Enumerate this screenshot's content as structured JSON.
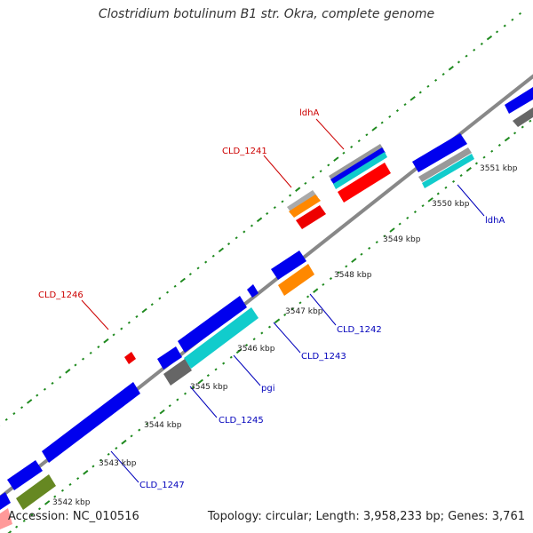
{
  "title": "Clostridium botulinum B1 str. Okra, complete genome",
  "footer": {
    "accession": "Accession: NC_010516",
    "topology": "Topology: circular; Length: 3,958,233 bp; Genes: 3,761"
  },
  "kbp_labels": [
    "3542 kbp",
    "3543 kbp",
    "3544 kbp",
    "3545 kbp",
    "3546 kbp",
    "3547 kbp",
    "3548 kbp",
    "3549 kbp",
    "3550 kbp",
    "3551 kbp"
  ],
  "gene_labels": {
    "ldhA_top": "ldhA",
    "cld1241": "CLD_1241",
    "cld1246": "CLD_1246",
    "ldhA_bottom": "ldhA",
    "cld1242": "CLD_1242",
    "cld1243": "CLD_1243",
    "pgi": "pgi",
    "cld1245": "CLD_1245",
    "cld1247": "CLD_1247"
  },
  "colors": {
    "forward_label": "#cc0000",
    "reverse_label": "#0000bb",
    "backbone": "#888888",
    "tick": "#1f8a1f",
    "cds_blue": "#0000ee",
    "cds_red": "#ff0000",
    "cds_orange": "#ff8800",
    "cds_cyan": "#11cccc",
    "cds_gray": "#666666",
    "cds_olive": "#668822"
  }
}
